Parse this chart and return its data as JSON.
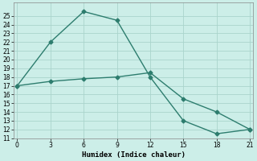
{
  "xlabel": "Humidex (Indice chaleur)",
  "line1_x": [
    0,
    3,
    6,
    9,
    12,
    15,
    18,
    21
  ],
  "line1_y": [
    17,
    22,
    25.5,
    24.5,
    18,
    13,
    11.5,
    12
  ],
  "line2_x": [
    0,
    3,
    6,
    9,
    12,
    15,
    18,
    21
  ],
  "line2_y": [
    17,
    17.5,
    17.8,
    18,
    18.5,
    15.5,
    14,
    12
  ],
  "line_color": "#2d7d6e",
  "bg_color": "#cceee8",
  "grid_color": "#aad4cc",
  "ylim": [
    11,
    26
  ],
  "xlim": [
    -0.3,
    21.3
  ],
  "yticks": [
    11,
    12,
    13,
    14,
    15,
    16,
    17,
    18,
    19,
    20,
    21,
    22,
    23,
    24,
    25
  ],
  "xticks": [
    0,
    3,
    6,
    9,
    12,
    15,
    18,
    21
  ],
  "marker": "D",
  "markersize": 2.5,
  "linewidth": 1.0,
  "tick_fontsize": 5.5,
  "xlabel_fontsize": 6.5
}
